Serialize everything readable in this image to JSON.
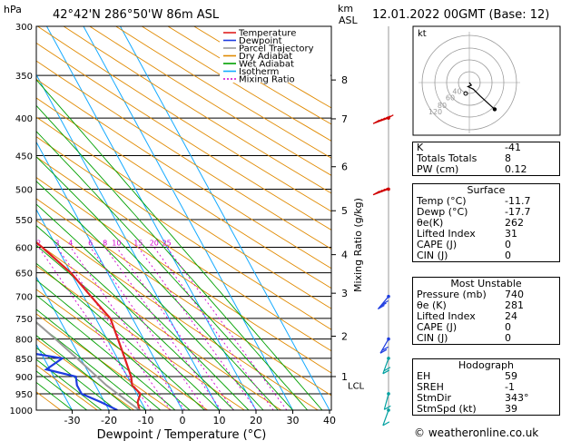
{
  "header": {
    "hpa_label": "hPa",
    "location": "42°42'N  286°50'W  86m  ASL",
    "km_label": "km",
    "asl_label": "ASL",
    "datetime": "12.01.2022  00GMT  (Base: 12)"
  },
  "colors": {
    "temperature": "#e02020",
    "dewpoint": "#1e3ce0",
    "parcel": "#999999",
    "dry_adiabat": "#e08a00",
    "wet_adiabat": "#00a000",
    "isotherm": "#14aaff",
    "mixing_ratio": "#d000d0"
  },
  "chart_data": {
    "type": "line",
    "title": "Skew-T log-P diagram",
    "xlabel": "Dewpoint / Temperature (°C)",
    "ylabel": "hPa",
    "y2label": "Mixing Ratio (g/kg)",
    "x_ticks": [
      -30,
      -20,
      -10,
      0,
      10,
      20,
      30,
      40
    ],
    "x_tick_labels": [
      "-30",
      "-20",
      "-10",
      "0",
      "10",
      "20",
      "30",
      "40"
    ],
    "pressure_levels": [
      300,
      350,
      400,
      450,
      500,
      550,
      600,
      650,
      700,
      750,
      800,
      850,
      900,
      950,
      1000
    ],
    "pressure_labels": [
      "300",
      "350",
      "400",
      "450",
      "500",
      "550",
      "600",
      "650",
      "700",
      "750",
      "800",
      "850",
      "900",
      "950",
      "1000"
    ],
    "km_ticks": [
      {
        "label": "8",
        "p": 355
      },
      {
        "label": "7",
        "p": 401
      },
      {
        "label": "6",
        "p": 466
      },
      {
        "label": "5",
        "p": 535
      },
      {
        "label": "4",
        "p": 614
      },
      {
        "label": "3",
        "p": 693
      },
      {
        "label": "2",
        "p": 793
      },
      {
        "label": "1",
        "p": 900
      }
    ],
    "lcl_label": "LCL",
    "lcl_p": 925,
    "mixing_ratio_labels": [
      {
        "label": "2",
        "w": 2
      },
      {
        "label": "3",
        "w": 3
      },
      {
        "label": "4",
        "w": 4
      },
      {
        "label": "6",
        "w": 6
      },
      {
        "label": "8",
        "w": 8
      },
      {
        "label": "10",
        "w": 10
      },
      {
        "label": "15",
        "w": 15
      },
      {
        "label": "20",
        "w": 20
      },
      {
        "label": "25",
        "w": 25
      }
    ],
    "legend": [
      {
        "label": "Temperature",
        "key": "temperature"
      },
      {
        "label": "Dewpoint",
        "key": "dewpoint"
      },
      {
        "label": "Parcel Trajectory",
        "key": "parcel"
      },
      {
        "label": "Dry Adiabat",
        "key": "dry_adiabat"
      },
      {
        "label": "Wet Adiabat",
        "key": "wet_adiabat"
      },
      {
        "label": "Isotherm",
        "key": "isotherm"
      },
      {
        "label": "Mixing Ratio",
        "key": "mixing_ratio"
      }
    ],
    "series": [
      {
        "name": "Temperature",
        "key": "temperature",
        "points": [
          [
            1000,
            -11.7
          ],
          [
            975,
            -11
          ],
          [
            950,
            -9
          ],
          [
            925,
            -10
          ],
          [
            900,
            -9
          ],
          [
            850,
            -8
          ],
          [
            800,
            -7
          ],
          [
            750,
            -6
          ],
          [
            700,
            -8
          ],
          [
            650,
            -10
          ],
          [
            600,
            -14
          ],
          [
            550,
            -19
          ],
          [
            500,
            -23
          ],
          [
            450,
            -27
          ],
          [
            400,
            -32
          ],
          [
            350,
            -37
          ],
          [
            300,
            -44
          ]
        ]
      },
      {
        "name": "Dewpoint",
        "key": "dewpoint",
        "points": [
          [
            1000,
            -17.7
          ],
          [
            975,
            -21
          ],
          [
            950,
            -25
          ],
          [
            925,
            -25
          ],
          [
            900,
            -24
          ],
          [
            880,
            -31
          ],
          [
            850,
            -25
          ],
          [
            820,
            -42
          ],
          [
            800,
            -44
          ],
          [
            760,
            -49
          ],
          [
            740,
            -49
          ],
          [
            720,
            -26
          ],
          [
            700,
            -25
          ],
          [
            650,
            -27
          ],
          [
            600,
            -33
          ],
          [
            550,
            -42
          ],
          [
            500,
            -48
          ],
          [
            450,
            -52
          ],
          [
            400,
            -56
          ],
          [
            380,
            -56
          ],
          [
            350,
            -59
          ],
          [
            300,
            -63
          ]
        ]
      },
      {
        "name": "Parcel Trajectory",
        "key": "parcel",
        "points": [
          [
            1000,
            -11.7
          ],
          [
            925,
            -17
          ],
          [
            850,
            -21
          ],
          [
            800,
            -24
          ],
          [
            700,
            -31
          ],
          [
            600,
            -39
          ],
          [
            500,
            -48
          ],
          [
            400,
            -58
          ]
        ]
      }
    ],
    "wind_barbs": [
      {
        "p": 400,
        "dir": 290,
        "speed": 55
      },
      {
        "p": 500,
        "dir": 290,
        "speed": 35
      },
      {
        "p": 700,
        "dir": 320,
        "speed": 25
      },
      {
        "p": 800,
        "dir": 330,
        "speed": 20
      },
      {
        "p": 850,
        "dir": 340,
        "speed": 15
      },
      {
        "p": 950,
        "dir": 345,
        "speed": 10
      },
      {
        "p": 1000,
        "dir": 340,
        "speed": 10
      }
    ]
  },
  "hodograph": {
    "title": "kt",
    "ring_labels": [
      "40",
      "60",
      "80",
      "120"
    ],
    "points": [
      [
        0,
        0
      ],
      [
        3,
        -4
      ],
      [
        -2,
        -6
      ],
      [
        6,
        -10
      ],
      [
        16,
        -20
      ],
      [
        38,
        -40
      ]
    ],
    "storm_motion": [
      -4,
      12
    ]
  },
  "indices": {
    "top": [
      {
        "label": "K",
        "value": "-41"
      },
      {
        "label": "Totals Totals",
        "value": "8"
      },
      {
        "label": "PW (cm)",
        "value": "0.12"
      }
    ],
    "surface": {
      "title": "Surface",
      "rows": [
        {
          "label": "Temp (°C)",
          "value": "-11.7"
        },
        {
          "label": "Dewp (°C)",
          "value": "-17.7"
        },
        {
          "label": "θe(K)",
          "value": "262"
        },
        {
          "label": "Lifted Index",
          "value": "31"
        },
        {
          "label": "CAPE (J)",
          "value": "0"
        },
        {
          "label": "CIN (J)",
          "value": "0"
        }
      ]
    },
    "most_unstable": {
      "title": "Most Unstable",
      "rows": [
        {
          "label": "Pressure (mb)",
          "value": "740"
        },
        {
          "label": "θe (K)",
          "value": "281"
        },
        {
          "label": "Lifted Index",
          "value": "24"
        },
        {
          "label": "CAPE (J)",
          "value": "0"
        },
        {
          "label": "CIN (J)",
          "value": "0"
        }
      ]
    },
    "hodograph_table": {
      "title": "Hodograph",
      "rows": [
        {
          "label": "EH",
          "value": "59"
        },
        {
          "label": "SREH",
          "value": "-1"
        },
        {
          "label": "StmDir",
          "value": "343°"
        },
        {
          "label": "StmSpd (kt)",
          "value": "39"
        }
      ]
    }
  },
  "footer": {
    "copyright": "© weatheronline.co.uk"
  }
}
